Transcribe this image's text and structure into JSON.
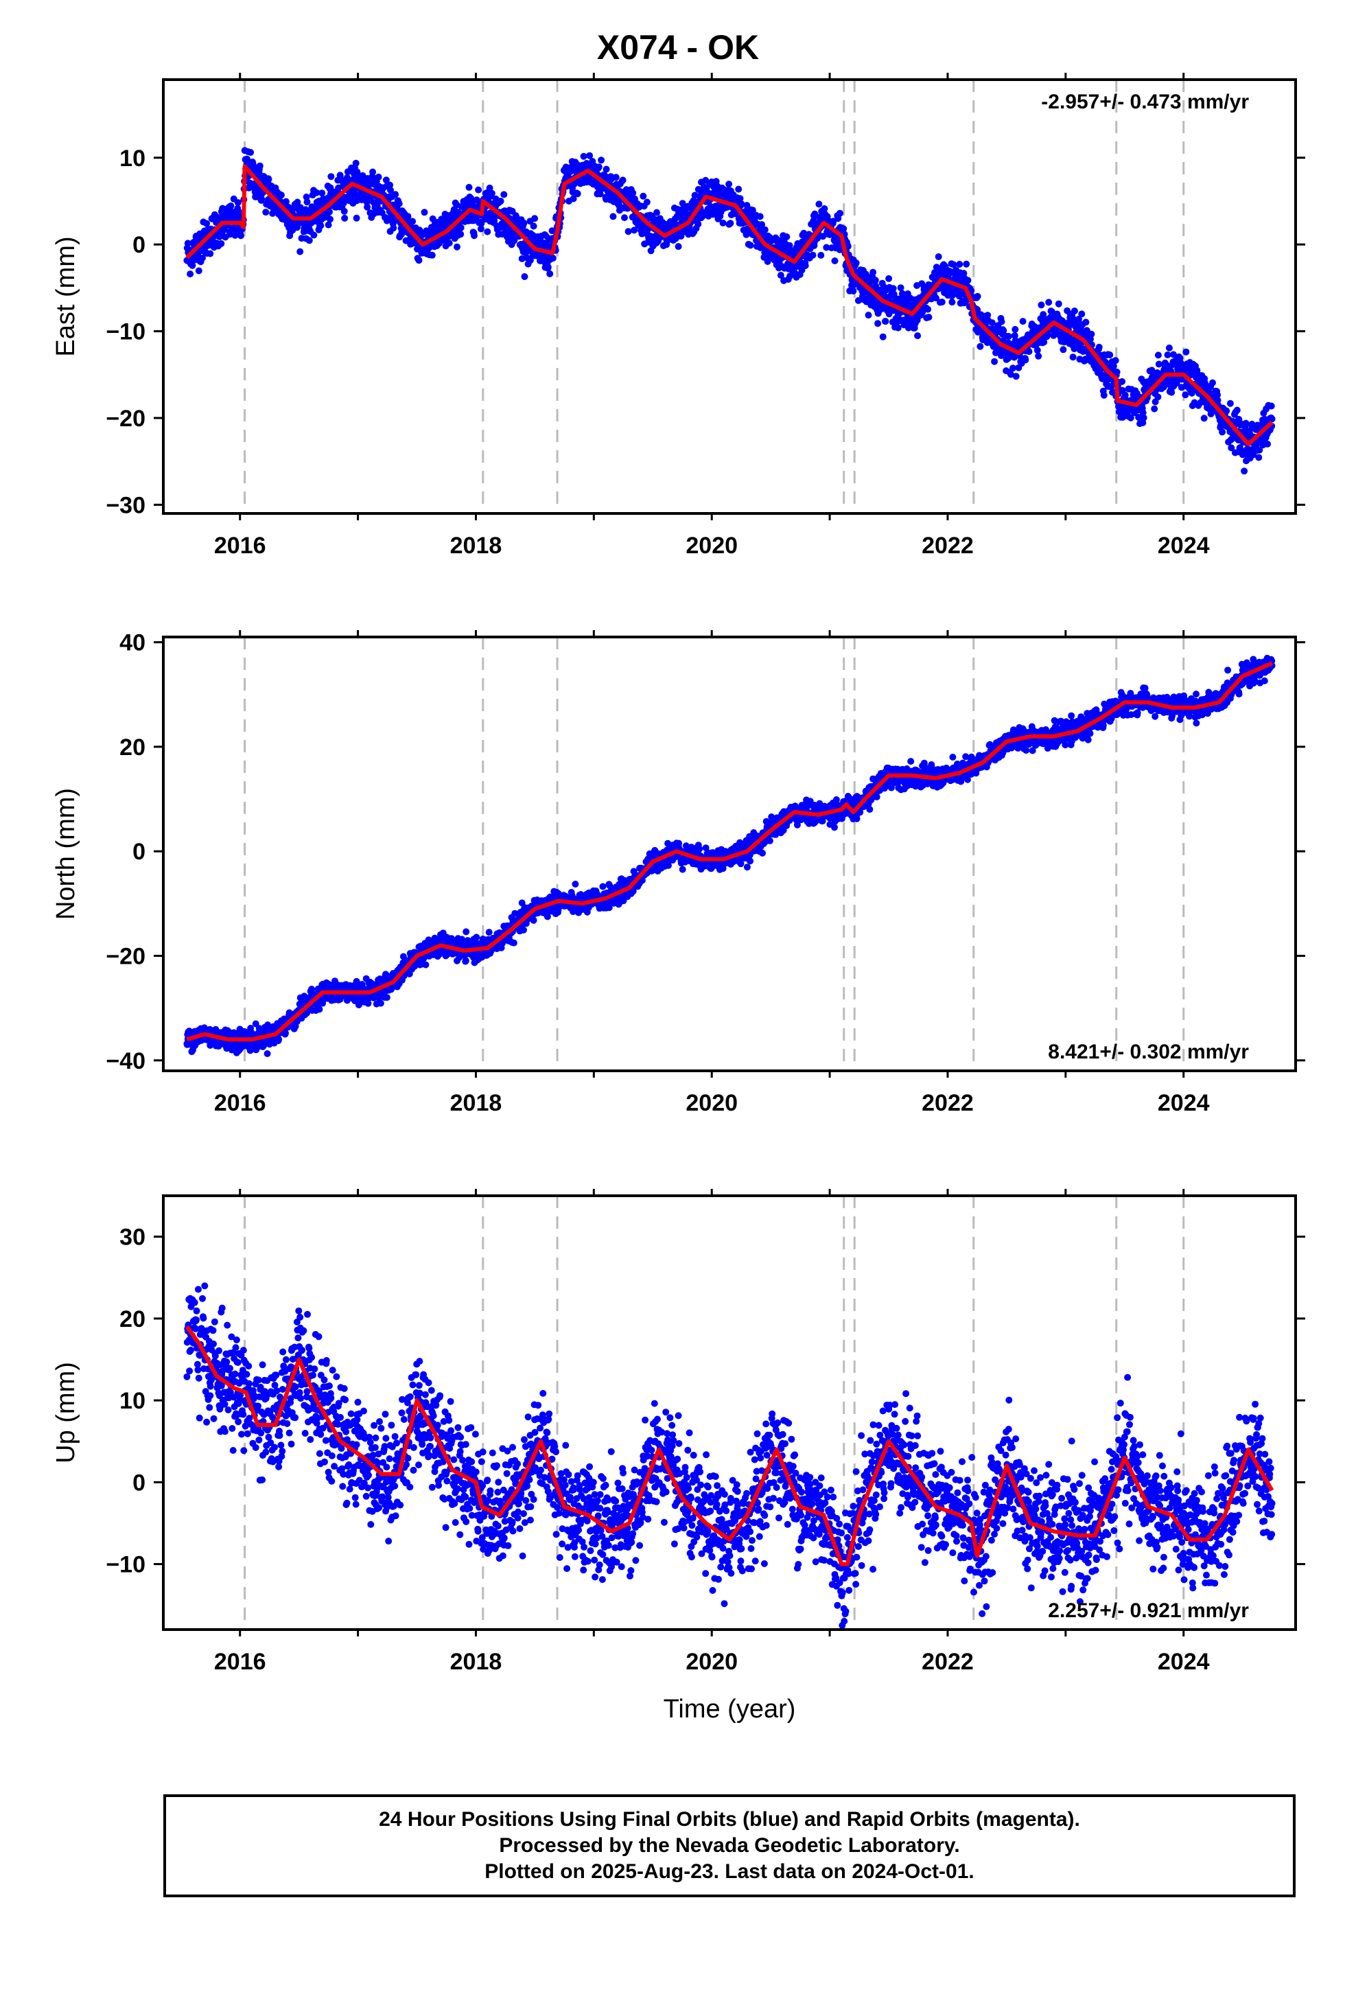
{
  "title": "X074 - OK",
  "colors": {
    "final_orbits": "#0000ff",
    "model": "#ff0000",
    "events": "#bbbbbb",
    "axis": "#000000"
  },
  "chart_data": [
    {
      "type": "scatter",
      "component": "East",
      "ylabel": "East (mm)",
      "xlabel": "",
      "xlim": [
        2015.35,
        2024.95
      ],
      "ylim": [
        -31,
        19
      ],
      "x_ticks": [
        2016,
        2018,
        2020,
        2022,
        2024
      ],
      "y_ticks": [
        -30,
        -20,
        -10,
        0,
        10
      ],
      "rate_label": "-2.957+/- 0.473 mm/yr",
      "rate_label_position": "top-right",
      "series": [
        {
          "role": "model",
          "x": [
            2015.55,
            2015.7,
            2015.85,
            2016.0,
            2016.03,
            2016.04,
            2016.2,
            2016.45,
            2016.6,
            2016.75,
            2016.95,
            2017.2,
            2017.45,
            2017.55,
            2017.75,
            2017.95,
            2018.05,
            2018.06,
            2018.25,
            2018.5,
            2018.65,
            2018.69,
            2018.75,
            2018.95,
            2019.2,
            2019.45,
            2019.6,
            2019.8,
            2019.95,
            2020.2,
            2020.45,
            2020.7,
            2020.95,
            2021.1,
            2021.14,
            2021.2,
            2021.45,
            2021.7,
            2021.95,
            2022.15,
            2022.2,
            2022.23,
            2022.45,
            2022.6,
            2022.9,
            2023.15,
            2023.35,
            2023.43,
            2023.44,
            2023.6,
            2023.85,
            2024.0,
            2024.2,
            2024.45,
            2024.55,
            2024.75
          ],
          "y": [
            -1.5,
            0.5,
            2.5,
            2.5,
            2.0,
            9.0,
            6.5,
            3.0,
            3.0,
            4.5,
            7.0,
            5.5,
            1.5,
            0.0,
            1.5,
            4.0,
            3.5,
            5.0,
            3.0,
            -0.5,
            -1.0,
            1.5,
            7.0,
            8.5,
            6.0,
            2.5,
            1.0,
            2.5,
            5.5,
            4.5,
            0.0,
            -2.0,
            2.5,
            1.0,
            -1.5,
            -3.5,
            -6.5,
            -8.0,
            -4.0,
            -5.0,
            -6.5,
            -8.5,
            -11.5,
            -12.5,
            -9.0,
            -11.0,
            -14.5,
            -15.5,
            -18.0,
            -18.5,
            -15.0,
            -15.0,
            -17.5,
            -21.5,
            -23.0,
            -20.5
          ]
        }
      ]
    },
    {
      "type": "scatter",
      "component": "North",
      "ylabel": "North (mm)",
      "xlabel": "",
      "xlim": [
        2015.35,
        2024.95
      ],
      "ylim": [
        -42,
        41
      ],
      "x_ticks": [
        2016,
        2018,
        2020,
        2022,
        2024
      ],
      "y_ticks": [
        -40,
        -20,
        0,
        20,
        40
      ],
      "rate_label": "8.421+/- 0.302 mm/yr",
      "rate_label_position": "bottom-right",
      "series": [
        {
          "role": "model",
          "x": [
            2015.55,
            2015.7,
            2015.9,
            2016.1,
            2016.3,
            2016.5,
            2016.7,
            2016.9,
            2017.1,
            2017.3,
            2017.5,
            2017.7,
            2017.9,
            2018.1,
            2018.3,
            2018.5,
            2018.7,
            2018.9,
            2019.1,
            2019.3,
            2019.5,
            2019.7,
            2019.9,
            2020.1,
            2020.3,
            2020.5,
            2020.7,
            2020.9,
            2021.1,
            2021.14,
            2021.2,
            2021.3,
            2021.5,
            2021.7,
            2021.9,
            2022.1,
            2022.3,
            2022.5,
            2022.7,
            2022.9,
            2023.1,
            2023.3,
            2023.5,
            2023.7,
            2023.9,
            2024.1,
            2024.3,
            2024.5,
            2024.75
          ],
          "y": [
            -36,
            -35,
            -36,
            -36,
            -35,
            -31,
            -27,
            -27,
            -27,
            -25,
            -20,
            -18,
            -19,
            -18.5,
            -15,
            -11,
            -9.5,
            -10,
            -9,
            -7,
            -2,
            0,
            -1.5,
            -1.5,
            0,
            4,
            7.5,
            7,
            8,
            9,
            7.5,
            10,
            14.5,
            14.5,
            14,
            15,
            17,
            21,
            22,
            22,
            23,
            25.5,
            28.5,
            28.5,
            27.5,
            27.5,
            28.5,
            33.5,
            36
          ]
        }
      ]
    },
    {
      "type": "scatter",
      "component": "Up",
      "ylabel": "Up (mm)",
      "xlabel": "Time (year)",
      "xlim": [
        2015.35,
        2024.95
      ],
      "ylim": [
        -18,
        35
      ],
      "x_ticks": [
        2016,
        2018,
        2020,
        2022,
        2024
      ],
      "y_ticks": [
        -10,
        0,
        10,
        20,
        30
      ],
      "rate_label": "2.257+/- 0.921 mm/yr",
      "rate_label_position": "bottom-right",
      "series": [
        {
          "role": "model",
          "x": [
            2015.55,
            2015.65,
            2015.8,
            2015.95,
            2016.05,
            2016.15,
            2016.3,
            2016.5,
            2016.65,
            2016.85,
            2017.05,
            2017.2,
            2017.35,
            2017.5,
            2017.65,
            2017.8,
            2018.0,
            2018.05,
            2018.2,
            2018.35,
            2018.55,
            2018.75,
            2018.95,
            2019.15,
            2019.3,
            2019.55,
            2019.75,
            2019.95,
            2020.15,
            2020.3,
            2020.55,
            2020.75,
            2020.95,
            2021.1,
            2021.15,
            2021.25,
            2021.5,
            2021.7,
            2021.9,
            2022.1,
            2022.2,
            2022.25,
            2022.5,
            2022.7,
            2022.9,
            2023.1,
            2023.25,
            2023.5,
            2023.7,
            2023.9,
            2024.05,
            2024.2,
            2024.35,
            2024.55,
            2024.75
          ],
          "y": [
            19,
            17,
            13,
            11.5,
            11,
            7,
            7,
            15,
            10,
            5,
            3,
            1,
            1,
            10,
            6,
            1.5,
            0,
            -3,
            -4,
            -1,
            5,
            -3,
            -4,
            -6,
            -5,
            4,
            -2,
            -5,
            -7,
            -4,
            4,
            -3,
            -4,
            -10,
            -10,
            -4,
            5,
            1,
            -3,
            -4,
            -5,
            -9,
            2,
            -5,
            -6,
            -6.5,
            -6.5,
            3,
            -3,
            -4,
            -7,
            -7,
            -4,
            4,
            -1
          ]
        }
      ]
    }
  ],
  "events": [
    2016.04,
    2018.06,
    2018.69,
    2021.12,
    2021.21,
    2022.22,
    2023.43,
    2024.0
  ],
  "footer": {
    "line1": "24 Hour Positions Using Final Orbits (blue) and Rapid Orbits (magenta).",
    "line2": "Processed by the Nevada Geodetic Laboratory.",
    "line3": "Plotted on 2025-Aug-23. Last data on 2024-Oct-01."
  }
}
